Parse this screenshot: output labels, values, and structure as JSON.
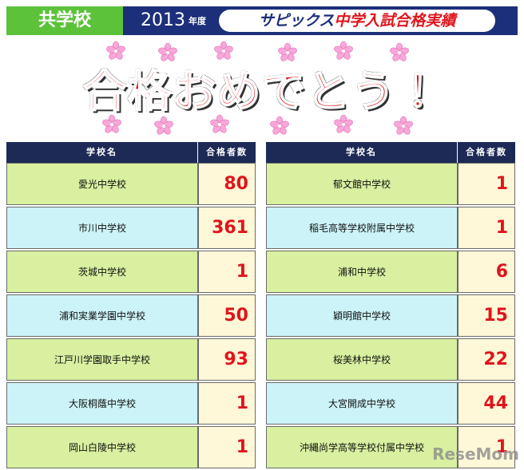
{
  "header": {
    "category": "共学校",
    "year": "2013",
    "year_suffix": "年度",
    "title_brand": "サピックス",
    "title_rest": "中学入試合格実績"
  },
  "banner": "合格おめでとう！",
  "tables": [
    {
      "columns": [
        "学校名",
        "合格者数"
      ],
      "rows": [
        [
          "愛光中学校",
          80
        ],
        [
          "市川中学校",
          361
        ],
        [
          "茨城中学校",
          1
        ],
        [
          "浦和実業学園中学校",
          50
        ],
        [
          "江戸川学園取手中学校",
          93
        ],
        [
          "大阪桐蔭中学校",
          1
        ],
        [
          "岡山白陵中学校",
          1
        ]
      ]
    },
    {
      "columns": [
        "学校名",
        "合格者数"
      ],
      "rows": [
        [
          "郁文館中学校",
          1
        ],
        [
          "稲毛高等学校附属中学校",
          1
        ],
        [
          "浦和中学校",
          6
        ],
        [
          "穎明館中学校",
          15
        ],
        [
          "桜美林中学校",
          22
        ],
        [
          "大宮開成中学校",
          44
        ],
        [
          "沖縄尚学高等学校付属中学校",
          1
        ]
      ]
    }
  ],
  "watermark": "ReseMom"
}
